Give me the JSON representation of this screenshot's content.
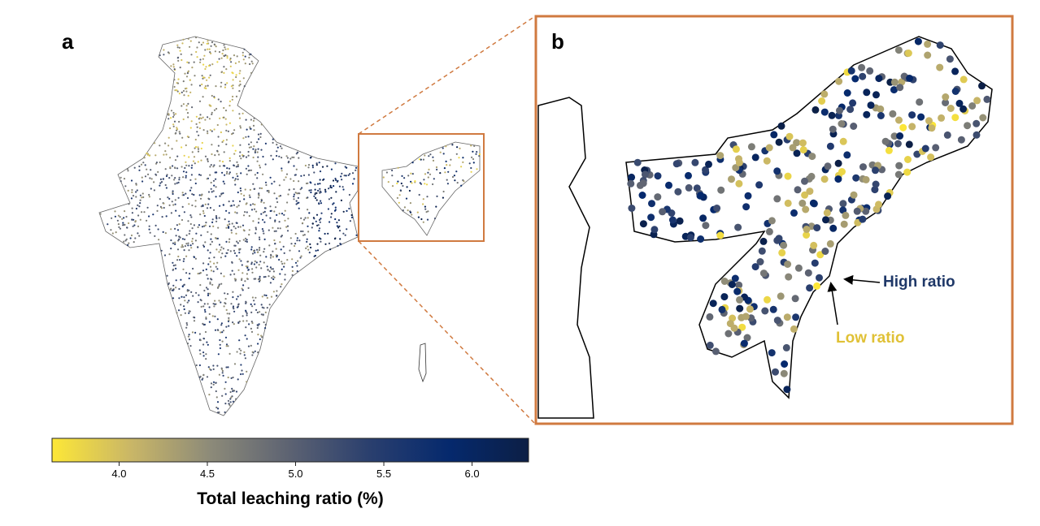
{
  "panels": {
    "a": "a",
    "b": "b"
  },
  "colorbar": {
    "label": "Total leaching ratio (%)",
    "range": [
      3.62,
      6.32
    ],
    "ticks": [
      "4.0",
      "4.5",
      "5.0",
      "5.5",
      "6.0"
    ],
    "tick_values": [
      4.0,
      4.5,
      5.0,
      5.5,
      6.0
    ],
    "colormap": [
      "#fde737",
      "#c9b667",
      "#8c8a79",
      "#5c6272",
      "#2a3f6e",
      "#05296d",
      "#0c1f45"
    ]
  },
  "annotations": {
    "high": {
      "text": "High ratio",
      "color": "#1f3868"
    },
    "low": {
      "text": "Low ratio",
      "color": "#e0c136"
    }
  },
  "zoom_box_color": "#d07a40"
}
